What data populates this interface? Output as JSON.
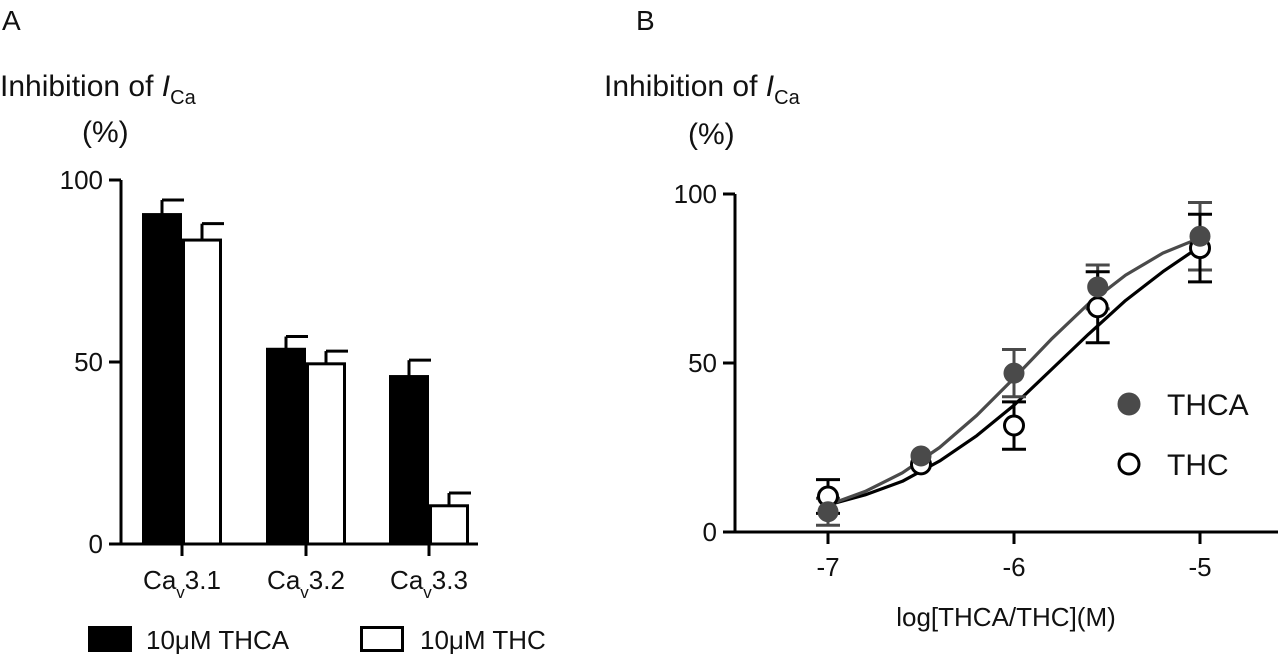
{
  "panels": {
    "a": {
      "label": "A",
      "title_main": "Inhibition of ",
      "title_var": "I",
      "title_sub": "Ca",
      "title_unit": "(%)"
    },
    "b": {
      "label": "B",
      "title_main": "Inhibition of ",
      "title_var": "I",
      "title_sub": "Ca",
      "title_unit": "(%)"
    }
  },
  "chart_data": [
    {
      "type": "bar",
      "panel": "A",
      "categories": [
        {
          "base": "Ca",
          "sub": "v",
          "rest": "3.1"
        },
        {
          "base": "Ca",
          "sub": "v",
          "rest": "3.2"
        },
        {
          "base": "Ca",
          "sub": "v",
          "rest": "3.3"
        }
      ],
      "series": [
        {
          "name": "10μM THCA",
          "fill": "#000000",
          "values": [
            90.5,
            53.5,
            46
          ],
          "errors": [
            4,
            3.5,
            4.5
          ]
        },
        {
          "name": "10μM THC",
          "fill": "#ffffff",
          "values": [
            83.5,
            49.5,
            10.5
          ],
          "errors": [
            4.5,
            3.5,
            3.5
          ]
        }
      ],
      "ylim": [
        0,
        100
      ],
      "yticks": [
        "0",
        "50",
        "100"
      ],
      "ylabel": "Inhibition of ICa (%)",
      "legend_placement": "bottom"
    },
    {
      "type": "scatter",
      "panel": "B",
      "xlabel": "log[THCA/THC](M)",
      "xticks": [
        "-7",
        "-6",
        "-5"
      ],
      "yticks": [
        "0",
        "50",
        "100"
      ],
      "xlim": [
        -7.5,
        -4.9
      ],
      "ylim": [
        0,
        100
      ],
      "series": [
        {
          "name": "THCA",
          "marker": "filled",
          "color": "#4a4a4a",
          "x": [
            -7,
            -6.5,
            -6,
            -5.55,
            -5
          ],
          "y": [
            6,
            22.5,
            47,
            72.5,
            87.5
          ],
          "errors": [
            4,
            0,
            7,
            6.5,
            10
          ],
          "fit_x": [
            -7,
            -6.8,
            -6.6,
            -6.4,
            -6.2,
            -6.0,
            -5.8,
            -5.6,
            -5.4,
            -5.2,
            -5.0
          ],
          "fit_y": [
            8,
            12,
            17.5,
            25,
            34.5,
            45.5,
            57,
            67.5,
            76,
            82.5,
            87
          ]
        },
        {
          "name": "THC",
          "marker": "open",
          "color": "#000000",
          "x": [
            -7,
            -6.5,
            -6,
            -5.55,
            -5
          ],
          "y": [
            10.5,
            20,
            31.5,
            66.5,
            84
          ],
          "errors": [
            5,
            0,
            7,
            10.5,
            10
          ],
          "fit_x": [
            -7,
            -6.8,
            -6.6,
            -6.4,
            -6.2,
            -6.0,
            -5.8,
            -5.6,
            -5.4,
            -5.2,
            -5.0
          ],
          "fit_y": [
            8,
            11,
            15,
            21,
            28.5,
            37.5,
            48,
            58.5,
            68.5,
            77,
            84.5
          ]
        }
      ],
      "legend_placement": "right"
    }
  ]
}
